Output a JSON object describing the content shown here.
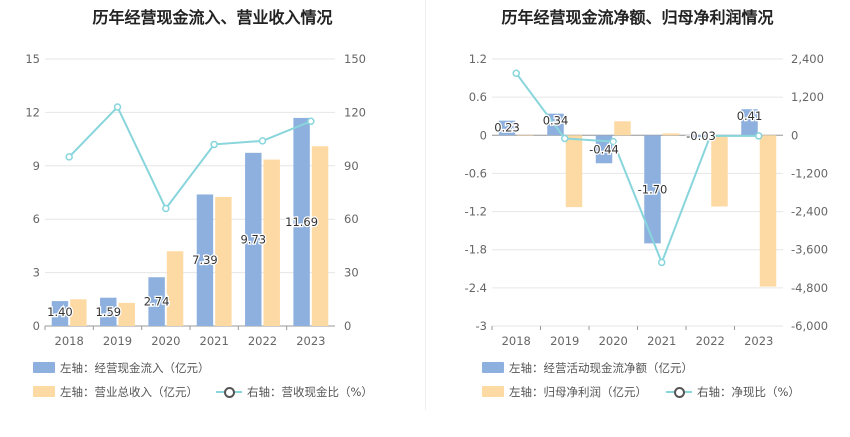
{
  "colors": {
    "primary_bar": "#8eb0de",
    "secondary_bar": "#fddaa4",
    "line": "#88d5dc",
    "grid": "#e6e6e6",
    "axis_text": "#666666"
  },
  "chart_data": [
    {
      "type": "bar",
      "title": "历年经营现金流入、营业收入情况",
      "categories": [
        "2018",
        "2019",
        "2020",
        "2021",
        "2022",
        "2023"
      ],
      "left_axis": {
        "min": 0,
        "max": 15,
        "ticks": [
          "0",
          "3",
          "6",
          "9",
          "12",
          "15"
        ]
      },
      "right_axis": {
        "min": 0,
        "max": 150,
        "ticks": [
          "0",
          "30",
          "60",
          "90",
          "120",
          "150"
        ]
      },
      "series": [
        {
          "name": "左轴：经营现金流入（亿元）",
          "axis": "left",
          "kind": "bar",
          "values": [
            1.4,
            1.59,
            2.74,
            7.39,
            9.73,
            11.69
          ],
          "labels": [
            "1.40",
            "1.59",
            "2.74",
            "7.39",
            "9.73",
            "11.69"
          ]
        },
        {
          "name": "左轴：营业总收入（亿元）",
          "axis": "left",
          "kind": "bar",
          "values": [
            1.5,
            1.3,
            4.2,
            7.25,
            9.35,
            10.1
          ]
        },
        {
          "name": "右轴：营收现金比（%）",
          "axis": "right",
          "kind": "line",
          "values": [
            95,
            123,
            66,
            102,
            104,
            115
          ]
        }
      ],
      "legend_position": "bottom"
    },
    {
      "type": "bar",
      "title": "历年经营现金流净额、归母净利润情况",
      "categories": [
        "2018",
        "2019",
        "2020",
        "2021",
        "2022",
        "2023"
      ],
      "left_axis": {
        "min": -3,
        "max": 1.2,
        "ticks": [
          "-3",
          "-2.4",
          "-1.8",
          "-1.2",
          "-0.6",
          "0",
          "0.6",
          "1.2"
        ]
      },
      "right_axis": {
        "min": -6000,
        "max": 2400,
        "ticks": [
          "-6,000",
          "-4,800",
          "-3,600",
          "-2,400",
          "-1,200",
          "0",
          "1,200",
          "2,400"
        ]
      },
      "series": [
        {
          "name": "左轴：经营活动现金流净额（亿元）",
          "axis": "left",
          "kind": "bar",
          "values": [
            0.23,
            0.34,
            -0.44,
            -1.7,
            -0.03,
            0.41
          ],
          "labels": [
            "0.23",
            "0.34",
            "-0.44",
            "-1.70",
            "-0.03",
            "0.41"
          ]
        },
        {
          "name": "左轴：归母净利润（亿元）",
          "axis": "left",
          "kind": "bar",
          "values": [
            0.0,
            -1.13,
            0.22,
            0.03,
            -1.12,
            -2.38
          ]
        },
        {
          "name": "右轴：净现比（%）",
          "axis": "right",
          "kind": "line",
          "values": [
            1950,
            -100,
            -200,
            -4000,
            -20,
            -20
          ]
        }
      ],
      "legend_position": "bottom"
    }
  ]
}
